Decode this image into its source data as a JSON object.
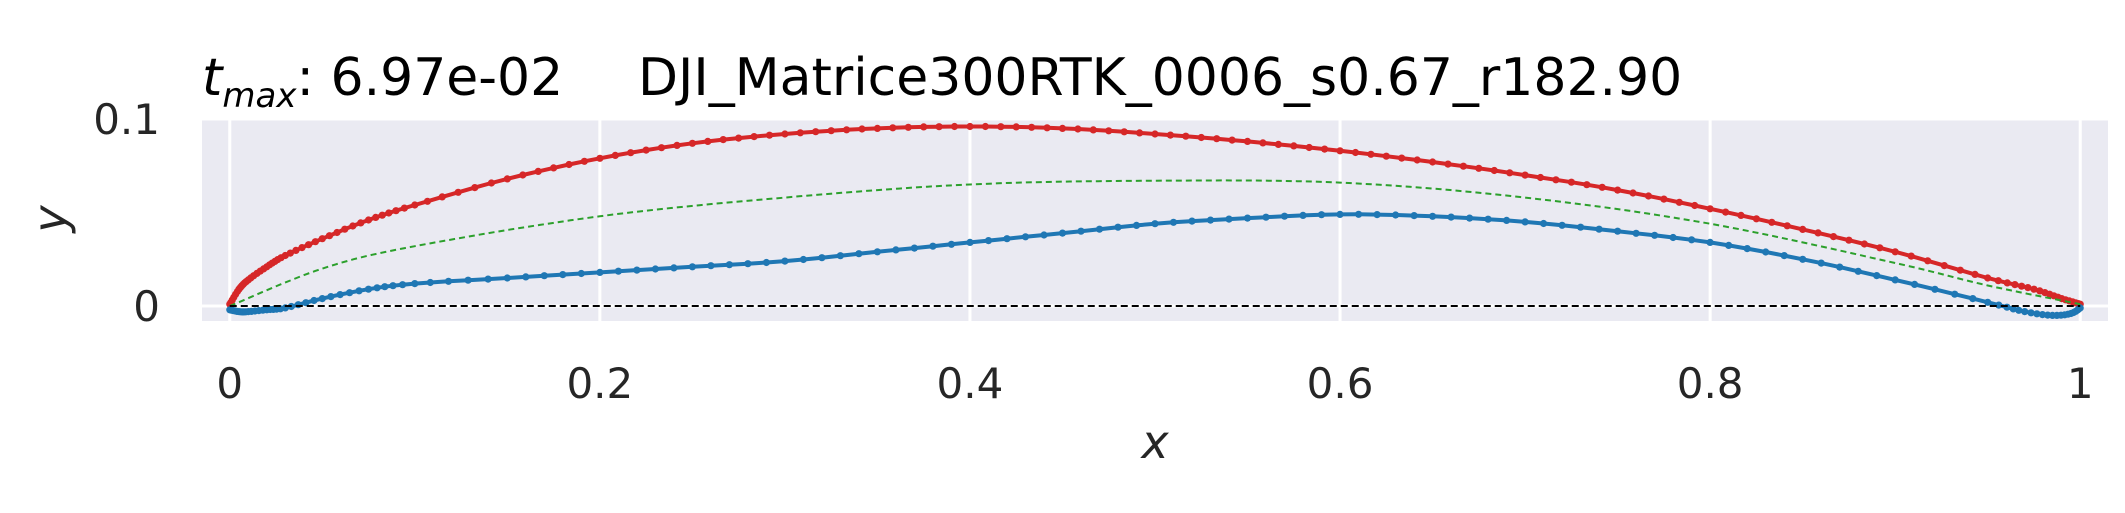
{
  "chart_data": {
    "type": "line",
    "title_prefix_var": "t",
    "title_prefix_sub": "max",
    "title_prefix_value": ": 6.97e-02",
    "title_name": "DJI_Matrice300RTK_0006_s0.67_r182.90",
    "xlabel": "x",
    "ylabel": "y",
    "xlim": [
      -0.015,
      1.015
    ],
    "ylim": [
      -0.008,
      0.1
    ],
    "xticks": [
      {
        "value": 0,
        "label": "0"
      },
      {
        "value": 0.2,
        "label": "0.2"
      },
      {
        "value": 0.4,
        "label": "0.4"
      },
      {
        "value": 0.6,
        "label": "0.6"
      },
      {
        "value": 0.8,
        "label": "0.8"
      },
      {
        "value": 1,
        "label": "1"
      }
    ],
    "yticks": [
      {
        "value": 0,
        "label": "0"
      },
      {
        "value": 0.1,
        "label": "0.1"
      }
    ],
    "grid": true,
    "legend": "none",
    "colors": {
      "background": "#eaeaf2",
      "grid": "#ffffff",
      "upper": "#d62728",
      "lower": "#1f77b4",
      "camber": "#2ca02c",
      "reference": "#000000"
    },
    "series": [
      {
        "key": "upper",
        "style": "line-markers",
        "x": [
          0,
          0.005,
          0.01,
          0.02,
          0.03,
          0.05,
          0.075,
          0.1,
          0.15,
          0.2,
          0.25,
          0.3,
          0.35,
          0.4,
          0.45,
          0.5,
          0.55,
          0.6,
          0.65,
          0.7,
          0.75,
          0.8,
          0.85,
          0.9,
          0.95,
          0.975,
          0.99,
          1.0
        ],
        "y": [
          0.001,
          0.009,
          0.014,
          0.021,
          0.027,
          0.036,
          0.046,
          0.054,
          0.068,
          0.079,
          0.087,
          0.092,
          0.095,
          0.096,
          0.095,
          0.092,
          0.088,
          0.083,
          0.077,
          0.07,
          0.062,
          0.052,
          0.041,
          0.029,
          0.015,
          0.009,
          0.004,
          0.001
        ]
      },
      {
        "key": "lower",
        "style": "line-markers",
        "x": [
          0,
          0.005,
          0.01,
          0.02,
          0.03,
          0.05,
          0.075,
          0.1,
          0.15,
          0.2,
          0.25,
          0.3,
          0.35,
          0.4,
          0.45,
          0.5,
          0.55,
          0.6,
          0.65,
          0.7,
          0.75,
          0.8,
          0.85,
          0.9,
          0.95,
          0.97,
          0.985,
          0.995,
          1.0
        ],
        "y": [
          -0.002,
          -0.003,
          -0.003,
          -0.002,
          -0.001,
          0.004,
          0.009,
          0.012,
          0.015,
          0.018,
          0.021,
          0.024,
          0.029,
          0.034,
          0.039,
          0.044,
          0.047,
          0.049,
          0.048,
          0.045,
          0.04,
          0.034,
          0.025,
          0.014,
          0.002,
          -0.003,
          -0.005,
          -0.004,
          -0.001
        ]
      },
      {
        "key": "camber",
        "style": "dashed",
        "x": [
          0,
          0.05,
          0.1,
          0.2,
          0.3,
          0.4,
          0.5,
          0.6,
          0.7,
          0.8,
          0.9,
          0.95,
          1.0
        ],
        "y": [
          0,
          0.02,
          0.032,
          0.048,
          0.058,
          0.065,
          0.067,
          0.066,
          0.058,
          0.044,
          0.023,
          0.011,
          0.001
        ]
      },
      {
        "key": "reference",
        "style": "dashed-thin",
        "x": [
          0,
          1
        ],
        "y": [
          0,
          0
        ]
      }
    ]
  }
}
